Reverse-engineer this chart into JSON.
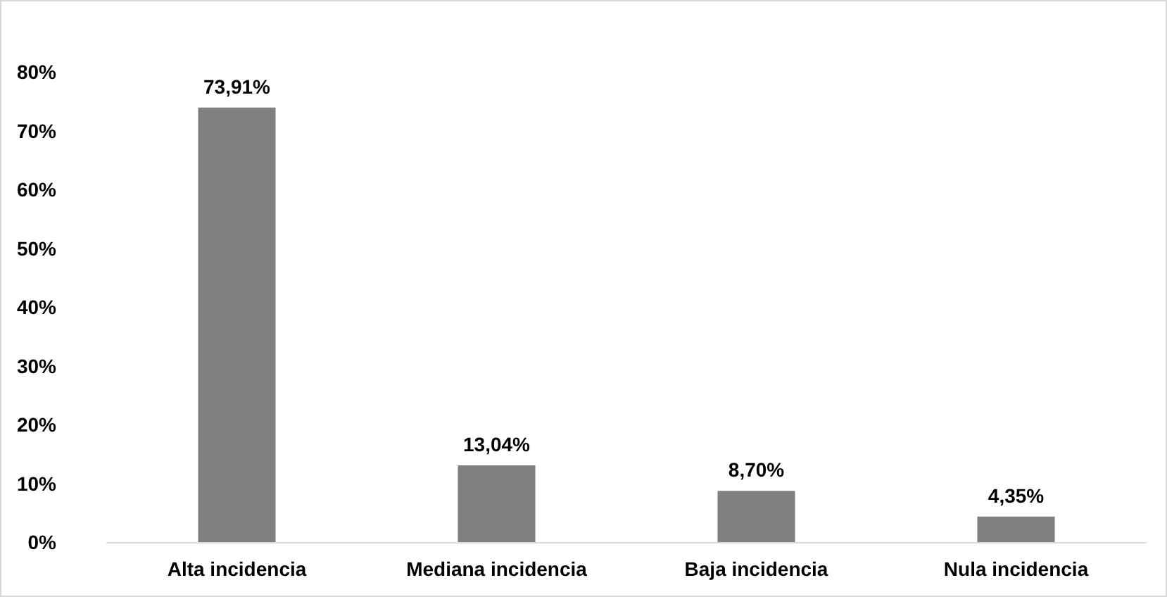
{
  "chart_data": {
    "type": "bar",
    "categories": [
      "Alta incidencia",
      "Mediana incidencia",
      "Baja incidencia",
      "Nula incidencia"
    ],
    "values": [
      73.91,
      13.04,
      8.7,
      4.35
    ],
    "value_labels": [
      "73,91%",
      "13,04%",
      "8,70%",
      "4,35%"
    ],
    "color": "#7f7f7f",
    "ylim": [
      0,
      80
    ],
    "yticks": [
      {
        "value": 0,
        "label": "0%"
      },
      {
        "value": 10,
        "label": "10%"
      },
      {
        "value": 20,
        "label": "20%"
      },
      {
        "value": 30,
        "label": "30%"
      },
      {
        "value": 40,
        "label": "40%"
      },
      {
        "value": 50,
        "label": "50%"
      },
      {
        "value": 60,
        "label": "60%"
      },
      {
        "value": 70,
        "label": "70%"
      },
      {
        "value": 80,
        "label": "80%"
      }
    ],
    "grid": false
  }
}
